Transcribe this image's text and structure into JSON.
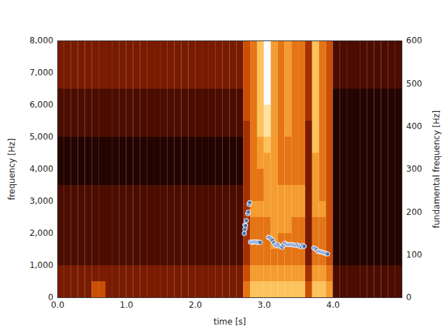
{
  "chart_data": {
    "type": "spectrogram",
    "xlabel": "time [s]",
    "ylabel": "frequency [Hz]",
    "y2label": "fundamental frequency [Hz]",
    "xlim": [
      0,
      5
    ],
    "ylim": [
      0,
      8000
    ],
    "y2lim": [
      0,
      600
    ],
    "xticks": [
      0,
      1,
      2,
      3,
      4
    ],
    "yticks": [
      0,
      1000,
      2000,
      3000,
      4000,
      5000,
      6000,
      7000,
      8000
    ],
    "y2ticks": [
      0,
      100,
      200,
      300,
      400,
      500,
      600
    ],
    "grid": false,
    "time_bins": [
      0,
      0.1,
      0.2,
      0.3,
      0.4,
      0.5,
      0.6,
      0.7,
      0.8,
      0.9,
      1.0,
      1.1,
      1.2,
      1.3,
      1.4,
      1.5,
      1.6,
      1.7,
      1.8,
      1.9,
      2.0,
      2.1,
      2.2,
      2.3,
      2.4,
      2.5,
      2.6,
      2.7,
      2.8,
      2.9,
      3.0,
      3.1,
      3.2,
      3.3,
      3.4,
      3.5,
      3.6,
      3.7,
      3.8,
      3.9,
      4.0,
      4.1,
      4.2,
      4.3,
      4.4,
      4.5,
      4.6,
      4.7,
      4.8,
      4.9,
      5.0
    ],
    "frequency_bins": [
      0,
      500,
      1000,
      1500,
      2000,
      2500,
      3000,
      3500,
      4000,
      4500,
      5000,
      5500,
      6000,
      6500,
      7000,
      7500,
      8000
    ],
    "cells": [
      [
        3,
        3,
        2,
        2,
        2,
        2,
        2,
        1,
        1,
        1,
        2,
        2,
        2,
        3,
        3,
        3
      ],
      [
        3,
        3,
        2,
        2,
        2,
        2,
        2,
        1,
        1,
        1,
        2,
        2,
        2,
        3,
        3,
        3
      ],
      [
        3,
        3,
        2,
        2,
        2,
        2,
        2,
        1,
        1,
        1,
        2,
        2,
        2,
        3,
        3,
        3
      ],
      [
        3,
        3,
        2,
        2,
        2,
        2,
        2,
        1,
        1,
        1,
        2,
        2,
        2,
        3,
        3,
        3
      ],
      [
        3,
        3,
        2,
        2,
        2,
        2,
        2,
        1,
        1,
        1,
        2,
        2,
        2,
        3,
        3,
        3
      ],
      [
        5,
        3,
        2,
        2,
        2,
        2,
        2,
        1,
        1,
        1,
        2,
        2,
        2,
        3,
        3,
        3
      ],
      [
        5,
        3,
        2,
        2,
        2,
        2,
        2,
        1,
        1,
        1,
        2,
        2,
        2,
        3,
        3,
        3
      ],
      [
        3,
        3,
        2,
        2,
        2,
        2,
        2,
        1,
        1,
        1,
        2,
        2,
        2,
        3,
        3,
        3
      ],
      [
        3,
        3,
        2,
        2,
        2,
        2,
        2,
        1,
        1,
        1,
        2,
        2,
        2,
        3,
        3,
        3
      ],
      [
        3,
        3,
        2,
        2,
        2,
        2,
        2,
        1,
        1,
        1,
        2,
        2,
        2,
        3,
        3,
        3
      ],
      [
        3,
        3,
        2,
        2,
        2,
        2,
        2,
        1,
        1,
        1,
        2,
        2,
        2,
        3,
        3,
        3
      ],
      [
        3,
        3,
        2,
        2,
        2,
        2,
        2,
        1,
        1,
        1,
        2,
        2,
        2,
        3,
        3,
        3
      ],
      [
        3,
        3,
        2,
        2,
        2,
        2,
        2,
        1,
        1,
        1,
        2,
        2,
        2,
        3,
        3,
        3
      ],
      [
        3,
        3,
        2,
        2,
        2,
        2,
        2,
        1,
        1,
        1,
        2,
        2,
        2,
        3,
        3,
        3
      ],
      [
        3,
        3,
        2,
        2,
        2,
        2,
        2,
        1,
        1,
        1,
        2,
        2,
        2,
        3,
        3,
        3
      ],
      [
        3,
        3,
        2,
        2,
        2,
        2,
        2,
        1,
        1,
        1,
        2,
        2,
        2,
        3,
        3,
        3
      ],
      [
        3,
        3,
        2,
        2,
        2,
        2,
        2,
        1,
        1,
        1,
        2,
        2,
        2,
        3,
        3,
        3
      ],
      [
        3,
        3,
        2,
        2,
        2,
        2,
        2,
        1,
        1,
        1,
        2,
        2,
        2,
        3,
        3,
        3
      ],
      [
        3,
        3,
        2,
        2,
        2,
        2,
        2,
        1,
        1,
        1,
        2,
        2,
        2,
        3,
        3,
        3
      ],
      [
        3,
        3,
        2,
        2,
        2,
        2,
        2,
        1,
        1,
        1,
        2,
        2,
        2,
        3,
        3,
        3
      ],
      [
        3,
        3,
        2,
        2,
        2,
        2,
        2,
        1,
        1,
        1,
        2,
        2,
        2,
        3,
        3,
        3
      ],
      [
        3,
        3,
        2,
        2,
        2,
        2,
        2,
        1,
        1,
        1,
        2,
        2,
        2,
        3,
        3,
        3
      ],
      [
        3,
        3,
        2,
        2,
        2,
        2,
        2,
        1,
        1,
        1,
        2,
        2,
        2,
        3,
        3,
        3
      ],
      [
        3,
        3,
        2,
        2,
        2,
        2,
        2,
        1,
        1,
        1,
        2,
        2,
        2,
        3,
        3,
        3
      ],
      [
        3,
        3,
        2,
        2,
        2,
        2,
        2,
        1,
        1,
        1,
        2,
        2,
        2,
        3,
        3,
        3
      ],
      [
        3,
        3,
        2,
        2,
        2,
        2,
        2,
        1,
        1,
        1,
        2,
        2,
        2,
        3,
        3,
        3
      ],
      [
        3,
        3,
        2,
        2,
        2,
        2,
        2,
        1,
        1,
        1,
        2,
        2,
        2,
        3,
        3,
        3
      ],
      [
        6,
        5,
        4,
        4,
        4,
        4,
        4,
        4,
        4,
        4,
        4,
        5,
        5,
        5,
        5,
        5
      ],
      [
        8,
        7,
        6,
        6,
        6,
        7,
        6,
        6,
        6,
        6,
        6,
        6,
        6,
        6,
        6,
        6
      ],
      [
        8,
        7,
        6,
        6,
        6,
        7,
        6,
        6,
        7,
        7,
        8,
        8,
        8,
        8,
        8,
        8
      ],
      [
        8,
        7,
        6,
        6,
        6,
        7,
        7,
        7,
        7,
        8,
        9,
        9,
        10,
        10,
        10,
        10
      ],
      [
        8,
        7,
        6,
        7,
        7,
        7,
        7,
        7,
        7,
        7,
        7,
        7,
        7,
        7,
        7,
        7
      ],
      [
        8,
        7,
        6,
        6,
        7,
        7,
        7,
        6,
        6,
        6,
        6,
        6,
        6,
        6,
        6,
        6
      ],
      [
        8,
        7,
        6,
        6,
        7,
        7,
        7,
        6,
        6,
        6,
        7,
        7,
        7,
        7,
        7,
        7
      ],
      [
        8,
        7,
        6,
        6,
        6,
        7,
        7,
        6,
        6,
        6,
        6,
        6,
        6,
        6,
        6,
        6
      ],
      [
        8,
        7,
        6,
        6,
        6,
        7,
        7,
        6,
        6,
        6,
        6,
        6,
        6,
        6,
        6,
        6
      ],
      [
        5,
        4,
        3,
        3,
        3,
        3,
        3,
        3,
        3,
        3,
        3,
        4,
        4,
        4,
        4,
        4
      ],
      [
        8,
        7,
        6,
        6,
        6,
        7,
        7,
        7,
        7,
        8,
        8,
        8,
        8,
        8,
        8,
        8
      ],
      [
        8,
        7,
        6,
        6,
        6,
        7,
        6,
        6,
        6,
        6,
        6,
        6,
        6,
        6,
        6,
        6
      ],
      [
        7,
        6,
        5,
        5,
        5,
        5,
        5,
        5,
        5,
        5,
        5,
        5,
        5,
        5,
        5,
        5
      ],
      [
        2,
        2,
        1,
        1,
        1,
        1,
        1,
        1,
        1,
        1,
        1,
        1,
        1,
        2,
        2,
        2
      ],
      [
        2,
        2,
        1,
        1,
        1,
        1,
        1,
        1,
        1,
        1,
        1,
        1,
        1,
        2,
        2,
        2
      ],
      [
        2,
        2,
        1,
        1,
        1,
        1,
        1,
        1,
        1,
        1,
        1,
        1,
        1,
        2,
        2,
        2
      ],
      [
        2,
        2,
        1,
        1,
        1,
        1,
        1,
        1,
        1,
        1,
        1,
        1,
        1,
        2,
        2,
        2
      ],
      [
        2,
        2,
        1,
        1,
        1,
        1,
        1,
        1,
        1,
        1,
        1,
        1,
        1,
        2,
        2,
        2
      ],
      [
        2,
        2,
        1,
        1,
        1,
        1,
        1,
        1,
        1,
        1,
        1,
        1,
        1,
        2,
        2,
        2
      ],
      [
        2,
        2,
        1,
        1,
        1,
        1,
        1,
        1,
        1,
        1,
        1,
        1,
        1,
        2,
        2,
        2
      ],
      [
        2,
        2,
        1,
        1,
        1,
        1,
        1,
        1,
        1,
        1,
        1,
        1,
        1,
        2,
        2,
        2
      ],
      [
        2,
        2,
        1,
        1,
        1,
        1,
        1,
        1,
        1,
        1,
        1,
        1,
        1,
        2,
        2,
        2
      ],
      [
        2,
        2,
        1,
        1,
        1,
        1,
        1,
        1,
        1,
        1,
        1,
        1,
        1,
        2,
        2,
        2
      ]
    ],
    "cell_range": [
      0,
      10
    ],
    "series": [
      {
        "axis": "y2",
        "type": "scatter",
        "marker": "circle",
        "color": "#4c72b0",
        "x": [
          2.71,
          2.72,
          2.72,
          2.73,
          2.74,
          2.76,
          2.77,
          2.78,
          2.79,
          2.8,
          2.82,
          2.84,
          2.86,
          2.88,
          2.9,
          2.92,
          2.94,
          3.06,
          3.08,
          3.1,
          3.12,
          3.14,
          3.16,
          3.18,
          3.2,
          3.22,
          3.24,
          3.26,
          3.28,
          3.3,
          3.32,
          3.34,
          3.36,
          3.38,
          3.4,
          3.42,
          3.44,
          3.46,
          3.48,
          3.5,
          3.52,
          3.54,
          3.56,
          3.58,
          3.72,
          3.74,
          3.76,
          3.78,
          3.8,
          3.82,
          3.84,
          3.86,
          3.88,
          3.9,
          3.92
        ],
        "values": [
          150,
          160,
          170,
          168,
          180,
          196,
          200,
          218,
          222,
          130,
          129,
          130,
          130,
          130,
          129,
          130,
          129,
          141,
          140,
          137,
          134,
          128,
          123,
          122,
          124,
          121,
          119,
          118,
          123,
          127,
          125,
          124,
          124,
          124,
          124,
          123,
          123,
          122,
          123,
          121,
          120,
          119,
          122,
          120,
          116,
          115,
          112,
          108,
          108,
          107,
          106,
          105,
          104,
          103,
          102
        ]
      }
    ]
  }
}
